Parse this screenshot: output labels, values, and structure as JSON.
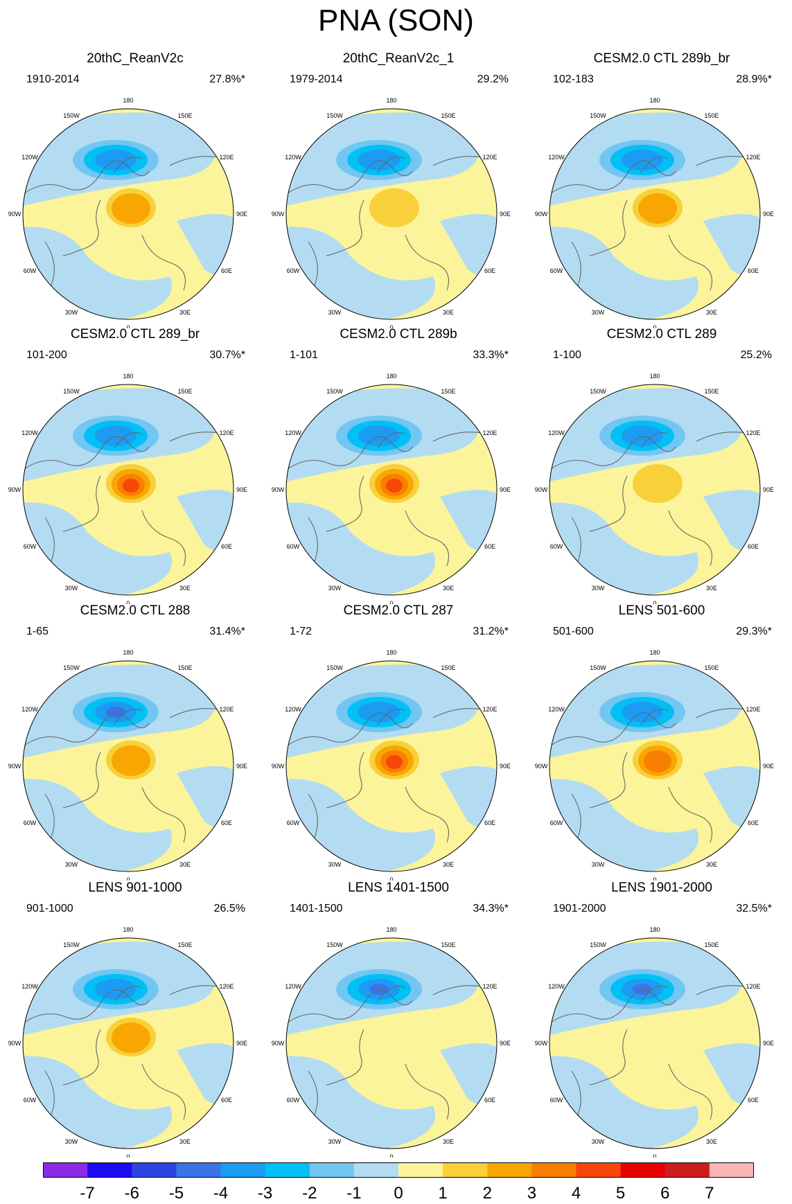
{
  "title": "PNA (SON)",
  "colors": {
    "neg7": "#8A2BE8",
    "neg6": "#1B0AF2",
    "neg5": "#2D45E0",
    "neg4": "#3A74E6",
    "neg3": "#1C9BF2",
    "neg2": "#00C0F6",
    "neg1": "#72C6F2",
    "zero_neg": "#B3DCF2",
    "zero_pos": "#FBF49A",
    "pos1": "#F8D03A",
    "pos2": "#F9A602",
    "pos3": "#F87F00",
    "pos4": "#F8460A",
    "pos5": "#E80000",
    "pos6": "#CD1C1C",
    "pos7": "#FBB5B5",
    "coast": "#666666"
  },
  "lon_labels": [
    "180",
    "150E",
    "120E",
    "90E",
    "60E",
    "30E",
    "0",
    "30W",
    "60W",
    "90W",
    "120W",
    "150W"
  ],
  "panels": [
    {
      "title": "20thC_ReanV2c",
      "period": "1910-2014",
      "pct": "27.8%*",
      "low": -3,
      "high": 2
    },
    {
      "title": "20thC_ReanV2c_1",
      "period": "1979-2014",
      "pct": "29.2%",
      "low": -3,
      "high": 1
    },
    {
      "title": "CESM2.0 CTL 289b_br",
      "period": "102-183",
      "pct": "28.9%*",
      "low": -3,
      "high": 2
    },
    {
      "title": "CESM2.0 CTL 289_br",
      "period": "101-200",
      "pct": "30.7%*",
      "low": -3,
      "high": 4
    },
    {
      "title": "CESM2.0 CTL 289b",
      "period": "1-101",
      "pct": "33.3%*",
      "low": -3,
      "high": 4
    },
    {
      "title": "CESM2.0 CTL 289",
      "period": "1-100",
      "pct": "25.2%",
      "low": -3,
      "high": 1
    },
    {
      "title": "CESM2.0 CTL 288",
      "period": "1-65",
      "pct": "31.4%*",
      "low": -4,
      "high": 2
    },
    {
      "title": "CESM2.0 CTL 287",
      "period": "1-72",
      "pct": "31.2%*",
      "low": -3,
      "high": 4
    },
    {
      "title": "LENS 501-600",
      "period": "501-600",
      "pct": "29.3%*",
      "low": -3,
      "high": 3
    },
    {
      "title": "LENS 901-1000",
      "period": "901-1000",
      "pct": "26.5%",
      "low": -3,
      "high": 2
    },
    {
      "title": "LENS 1401-1500",
      "period": "1401-1500",
      "pct": "34.3%*",
      "low": -4,
      "high": 0
    },
    {
      "title": "LENS 1901-2000",
      "period": "1901-2000",
      "pct": "32.5%*",
      "low": -4,
      "high": 0
    }
  ],
  "colorbar": {
    "labels": [
      "-7",
      "-6",
      "-5",
      "-4",
      "-3",
      "-2",
      "-1",
      "0",
      "1",
      "2",
      "3",
      "4",
      "5",
      "6",
      "7"
    ]
  }
}
